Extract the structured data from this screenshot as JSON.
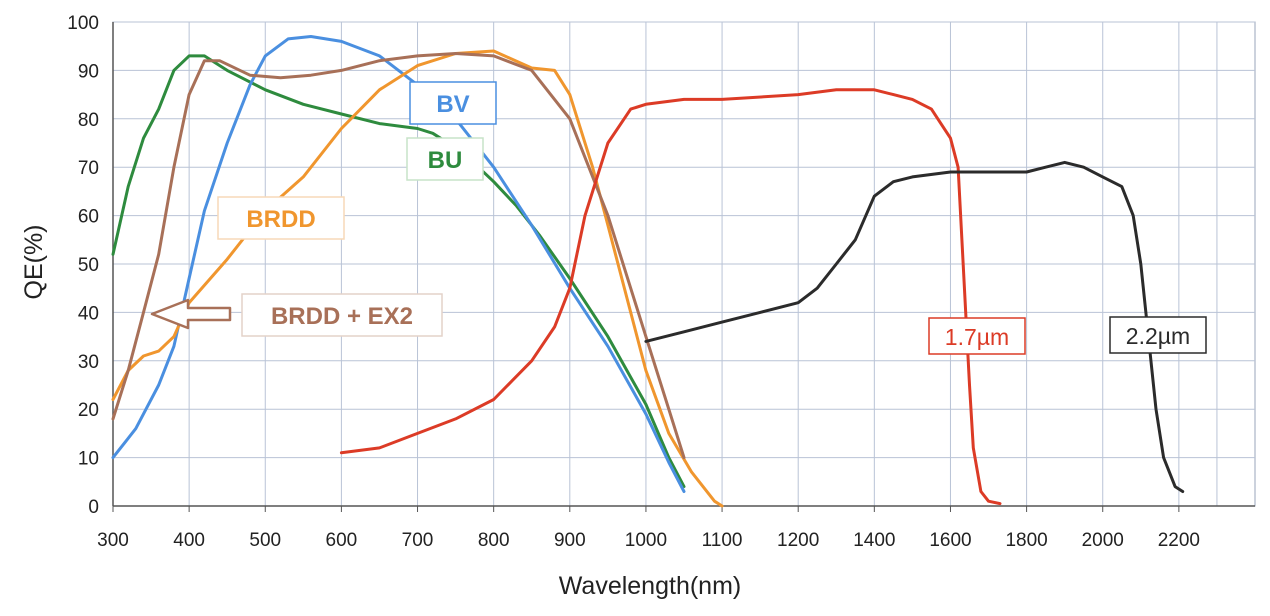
{
  "chart_data": {
    "type": "line",
    "title": "",
    "xlabel": "Wavelength(nm)",
    "ylabel": "QE(%)",
    "xlim": [
      300,
      2300
    ],
    "ylim": [
      0,
      100
    ],
    "x_ticks": [
      300,
      400,
      500,
      600,
      700,
      800,
      900,
      1000,
      1100,
      1200,
      1400,
      1600,
      1800,
      2000,
      2200
    ],
    "y_ticks": [
      0,
      10,
      20,
      30,
      40,
      50,
      60,
      70,
      80,
      90,
      100
    ],
    "grid": true,
    "series": [
      {
        "name": "BU",
        "color": "#2e8b3e",
        "points": [
          [
            300,
            52
          ],
          [
            320,
            66
          ],
          [
            340,
            76
          ],
          [
            360,
            82
          ],
          [
            380,
            90
          ],
          [
            400,
            93
          ],
          [
            420,
            93
          ],
          [
            450,
            90
          ],
          [
            500,
            86
          ],
          [
            550,
            83
          ],
          [
            600,
            81
          ],
          [
            650,
            79
          ],
          [
            700,
            78
          ],
          [
            720,
            77
          ],
          [
            750,
            74
          ],
          [
            780,
            70
          ],
          [
            800,
            67
          ],
          [
            830,
            62
          ],
          [
            860,
            56
          ],
          [
            900,
            47
          ],
          [
            950,
            35
          ],
          [
            1000,
            21
          ],
          [
            1030,
            10
          ],
          [
            1050,
            4
          ]
        ]
      },
      {
        "name": "BV",
        "color": "#4a8fe0",
        "points": [
          [
            300,
            10
          ],
          [
            330,
            16
          ],
          [
            360,
            25
          ],
          [
            380,
            33
          ],
          [
            400,
            47
          ],
          [
            420,
            61
          ],
          [
            450,
            75
          ],
          [
            480,
            87
          ],
          [
            500,
            93
          ],
          [
            530,
            96.5
          ],
          [
            560,
            97
          ],
          [
            600,
            96
          ],
          [
            650,
            93
          ],
          [
            700,
            87
          ],
          [
            750,
            80
          ],
          [
            800,
            70
          ],
          [
            850,
            58
          ],
          [
            900,
            45
          ],
          [
            950,
            33
          ],
          [
            1000,
            19
          ],
          [
            1030,
            9
          ],
          [
            1050,
            3
          ]
        ]
      },
      {
        "name": "BRDD",
        "color": "#f0962e",
        "points": [
          [
            300,
            22
          ],
          [
            320,
            28
          ],
          [
            340,
            31
          ],
          [
            360,
            32
          ],
          [
            380,
            35
          ],
          [
            400,
            42
          ],
          [
            450,
            51
          ],
          [
            500,
            61
          ],
          [
            550,
            68
          ],
          [
            600,
            78
          ],
          [
            650,
            86
          ],
          [
            700,
            91
          ],
          [
            750,
            93.5
          ],
          [
            800,
            94
          ],
          [
            850,
            90.5
          ],
          [
            880,
            90
          ],
          [
            900,
            85
          ],
          [
            930,
            70
          ],
          [
            950,
            58
          ],
          [
            980,
            40
          ],
          [
            1000,
            28
          ],
          [
            1030,
            15
          ],
          [
            1060,
            7
          ],
          [
            1090,
            1
          ],
          [
            1100,
            0
          ]
        ]
      },
      {
        "name": "BRDD + EX2",
        "color": "#a87058",
        "points": [
          [
            300,
            18
          ],
          [
            320,
            28
          ],
          [
            340,
            40
          ],
          [
            360,
            52
          ],
          [
            380,
            70
          ],
          [
            400,
            85
          ],
          [
            420,
            92
          ],
          [
            440,
            92
          ],
          [
            480,
            89
          ],
          [
            520,
            88.5
          ],
          [
            560,
            89
          ],
          [
            600,
            90
          ],
          [
            650,
            92
          ],
          [
            700,
            93
          ],
          [
            750,
            93.5
          ],
          [
            800,
            93
          ],
          [
            850,
            90
          ],
          [
            900,
            80
          ],
          [
            950,
            60
          ],
          [
            1000,
            35
          ],
          [
            1030,
            20
          ],
          [
            1050,
            10
          ]
        ]
      },
      {
        "name": "1.7µm",
        "color": "#dc3b26",
        "points": [
          [
            600,
            11
          ],
          [
            650,
            12
          ],
          [
            700,
            15
          ],
          [
            750,
            18
          ],
          [
            800,
            22
          ],
          [
            850,
            30
          ],
          [
            880,
            37
          ],
          [
            900,
            45
          ],
          [
            920,
            60
          ],
          [
            950,
            75
          ],
          [
            980,
            82
          ],
          [
            1000,
            83
          ],
          [
            1050,
            84
          ],
          [
            1100,
            84
          ],
          [
            1200,
            85
          ],
          [
            1300,
            86
          ],
          [
            1400,
            86
          ],
          [
            1450,
            85
          ],
          [
            1500,
            84
          ],
          [
            1550,
            82
          ],
          [
            1600,
            76
          ],
          [
            1620,
            70
          ],
          [
            1630,
            55
          ],
          [
            1640,
            40
          ],
          [
            1650,
            25
          ],
          [
            1660,
            12
          ],
          [
            1680,
            3
          ],
          [
            1700,
            1
          ],
          [
            1730,
            0.5
          ]
        ]
      },
      {
        "name": "2.2µm",
        "color": "#2b2b2b",
        "points": [
          [
            1000,
            34
          ],
          [
            1050,
            36
          ],
          [
            1100,
            38
          ],
          [
            1150,
            40
          ],
          [
            1200,
            42
          ],
          [
            1250,
            45
          ],
          [
            1300,
            50
          ],
          [
            1350,
            55
          ],
          [
            1400,
            64
          ],
          [
            1450,
            67
          ],
          [
            1500,
            68
          ],
          [
            1600,
            69
          ],
          [
            1700,
            69
          ],
          [
            1800,
            69
          ],
          [
            1850,
            70
          ],
          [
            1900,
            71
          ],
          [
            1950,
            70
          ],
          [
            2000,
            68
          ],
          [
            2050,
            66
          ],
          [
            2080,
            60
          ],
          [
            2100,
            50
          ],
          [
            2120,
            35
          ],
          [
            2140,
            20
          ],
          [
            2160,
            10
          ],
          [
            2190,
            4
          ],
          [
            2210,
            3
          ]
        ]
      }
    ]
  },
  "labels": {
    "bv": "BV",
    "bu": "BU",
    "brdd": "BRDD",
    "brdd_ex2": "BRDD + EX2",
    "nir17": "1.7µm",
    "nir22": "2.2µm"
  }
}
